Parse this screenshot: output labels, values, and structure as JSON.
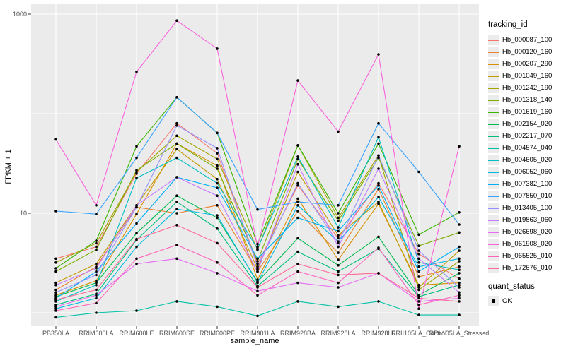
{
  "figure": {
    "y_axis_title": "FPKM + 1",
    "x_axis_title": "sample_name",
    "legend": {
      "tracking_title": "tracking_id",
      "quant_title": "quant_status",
      "quant_items": [
        {
          "label": "OK",
          "symbol": "black-square"
        }
      ]
    },
    "colors": {
      "panel_bg": "#ebebeb",
      "gridline": "#ffffff",
      "point": "#000000",
      "tick": "#333333",
      "tick_text": "#4d4d4d"
    }
  },
  "chart_data": {
    "type": "line",
    "title": "",
    "xlabel": "sample_name",
    "ylabel": "FPKM + 1",
    "y_scale": "log10",
    "ylim": [
      0.85,
      1100
    ],
    "y_tick_labels": [
      1000,
      10
    ],
    "y_gridlines": [
      1,
      10,
      100,
      1000
    ],
    "grid": "major-white-on-gray",
    "legend_position": "right",
    "point_marker": "black-dot",
    "categories": [
      "PB350LA",
      "RRIM600LA",
      "RRIM600LE",
      "RRIM600SE",
      "RRIM600PE",
      "RRIM901LA",
      "RRIM928BA",
      "RRIM928LA",
      "RRIM928LE",
      "RRII105LA_Control",
      "RRII105LA_Stressed"
    ],
    "quant_status_all": "OK",
    "series": [
      {
        "name": "Hb_000087_100",
        "color": "#F8766D",
        "values": [
          3.5,
          4.6,
          25,
          80,
          40,
          3.1,
          19,
          5.6,
          20,
          3.9,
          2.2
        ]
      },
      {
        "name": "Hb_000120_160",
        "color": "#EA8331",
        "values": [
          1.7,
          2.9,
          11.5,
          10,
          12,
          2.6,
          10.5,
          4.0,
          17.5,
          2.3,
          2.9
        ]
      },
      {
        "name": "Hb_000207_290",
        "color": "#D89000",
        "values": [
          1.5,
          2.1,
          9.8,
          50,
          30,
          2.15,
          14,
          3.4,
          12.4,
          1.9,
          2.0
        ]
      },
      {
        "name": "Hb_001049_160",
        "color": "#C09B00",
        "values": [
          2.0,
          3.1,
          12,
          44,
          22,
          2.75,
          26,
          6.0,
          13,
          1.8,
          4.2
        ]
      },
      {
        "name": "Hb_001242_190",
        "color": "#A3A500",
        "values": [
          3.2,
          5.0,
          26,
          60,
          35,
          4.3,
          48,
          9.0,
          38,
          1.7,
          3.3
        ]
      },
      {
        "name": "Hb_001318_140",
        "color": "#7CAE00",
        "values": [
          2.6,
          4.3,
          27,
          50,
          28,
          3.3,
          35,
          8.4,
          36,
          4.7,
          6.4
        ]
      },
      {
        "name": "Hb_001619_160",
        "color": "#39B600",
        "values": [
          2.8,
          5.3,
          47,
          146,
          64,
          4.9,
          48,
          10,
          50,
          6.1,
          10.2
        ]
      },
      {
        "name": "Hb_002154_020",
        "color": "#00BB4E",
        "values": [
          1.45,
          2.0,
          6.3,
          15,
          9,
          2.05,
          5.6,
          3.0,
          5.8,
          1.5,
          2.5
        ]
      },
      {
        "name": "Hb_002217_070",
        "color": "#00BF7D",
        "values": [
          1.2,
          1.55,
          5.4,
          13,
          7,
          1.85,
          4.1,
          2.6,
          4.4,
          1.45,
          1.9
        ]
      },
      {
        "name": "Hb_004574_040",
        "color": "#00C1A3",
        "values": [
          0.9,
          1.0,
          1.05,
          1.3,
          1.15,
          0.93,
          1.3,
          1.15,
          1.3,
          0.95,
          0.95
        ]
      },
      {
        "name": "Hb_004605_020",
        "color": "#00BFC4",
        "values": [
          1.3,
          1.9,
          22.6,
          36,
          20,
          4.4,
          37,
          7.2,
          58,
          3.2,
          2.7
        ]
      },
      {
        "name": "Hb_006052_060",
        "color": "#00BAE0",
        "values": [
          1.1,
          1.4,
          4.6,
          11,
          9.5,
          2.0,
          12,
          5.2,
          14.5,
          2.9,
          3.5
        ]
      },
      {
        "name": "Hb_007382_100",
        "color": "#00B0F6",
        "values": [
          1.4,
          2.6,
          7.9,
          23,
          18,
          3.5,
          9,
          6.6,
          19,
          2.6,
          4.6
        ]
      },
      {
        "name": "Hb_007850_010",
        "color": "#35A2FF",
        "values": [
          10.5,
          9.8,
          36,
          146,
          64,
          10.9,
          13,
          12,
          80,
          26,
          7.7
        ]
      },
      {
        "name": "Hb_013405_100",
        "color": "#9590FF",
        "values": [
          1.6,
          2.4,
          11.5,
          76,
          45,
          2.9,
          20,
          5.0,
          38,
          4.2,
          1.8
        ]
      },
      {
        "name": "Hb_019863_060",
        "color": "#C77CFF",
        "values": [
          1.9,
          2.8,
          12,
          23,
          15,
          2.6,
          31,
          4.6,
          28,
          3.5,
          1.6
        ]
      },
      {
        "name": "Hb_026698_020",
        "color": "#E76BF3",
        "values": [
          1.15,
          1.5,
          3.1,
          3.5,
          2.5,
          1.65,
          2.0,
          1.8,
          2.5,
          1.3,
          1.4
        ]
      },
      {
        "name": "Hb_061908_020",
        "color": "#FA62DB",
        "values": [
          55,
          12,
          263,
          860,
          450,
          4.6,
          215,
          66,
          394,
          1.1,
          47
        ]
      },
      {
        "name": "Hb_065525_010",
        "color": "#FF62BC",
        "values": [
          1.05,
          1.25,
          3.5,
          4.8,
          3.2,
          1.5,
          2.6,
          2.0,
          4.5,
          1.2,
          1.5
        ]
      },
      {
        "name": "Hb_172676_010",
        "color": "#FF6A98",
        "values": [
          1.35,
          1.7,
          5.5,
          7.6,
          5.0,
          1.8,
          3.1,
          2.4,
          2.5,
          1.4,
          1.3
        ]
      }
    ]
  }
}
